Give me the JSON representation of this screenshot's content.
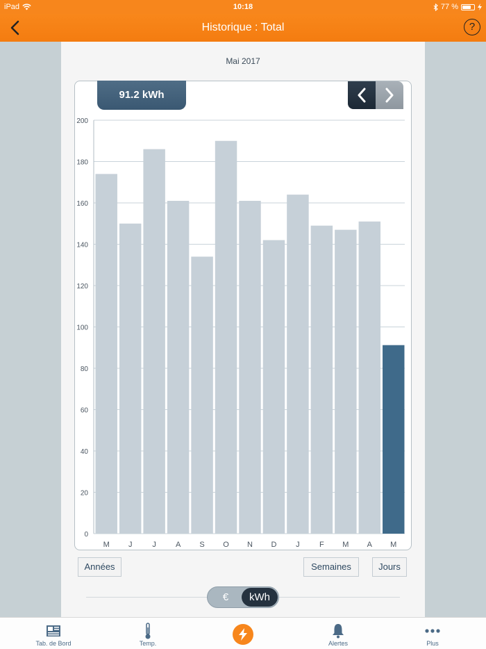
{
  "status_bar": {
    "device": "iPad",
    "time": "10:18",
    "battery": "77 %",
    "battery_fraction": 0.77
  },
  "header": {
    "title": "Historique : Total"
  },
  "period_label": "Mai 2017",
  "current_value": "91.2 kWh",
  "buttons": {
    "annees": "Années",
    "semaines": "Semaines",
    "jours": "Jours"
  },
  "unit_toggle": {
    "euro": "€",
    "kwh": "kWh",
    "selected": "kWh"
  },
  "tab_bar": {
    "items": [
      {
        "label": "Tab. de Bord",
        "icon": "newspaper-icon"
      },
      {
        "label": "Temp.",
        "icon": "thermometer-icon"
      },
      {
        "label": "",
        "icon": "lightning-icon"
      },
      {
        "label": "Alertes",
        "icon": "bell-icon"
      },
      {
        "label": "Plus",
        "icon": "ellipsis-icon"
      }
    ]
  },
  "colors": {
    "accent": "#f7861c",
    "bar": "#c6d0d8",
    "bar_highlight": "#3f6a8a",
    "text_dark": "#2f4a62"
  },
  "chart_data": {
    "type": "bar",
    "categories": [
      "M",
      "J",
      "J",
      "A",
      "S",
      "O",
      "N",
      "D",
      "J",
      "F",
      "M",
      "A",
      "M"
    ],
    "values": [
      174,
      150,
      186,
      161,
      134,
      190,
      161,
      142,
      164,
      149,
      147,
      151,
      91.2
    ],
    "highlight_index": 12,
    "ylim": [
      0,
      200
    ],
    "yticks": [
      0,
      20,
      40,
      60,
      80,
      100,
      120,
      140,
      160,
      180,
      200
    ],
    "grid": true
  }
}
